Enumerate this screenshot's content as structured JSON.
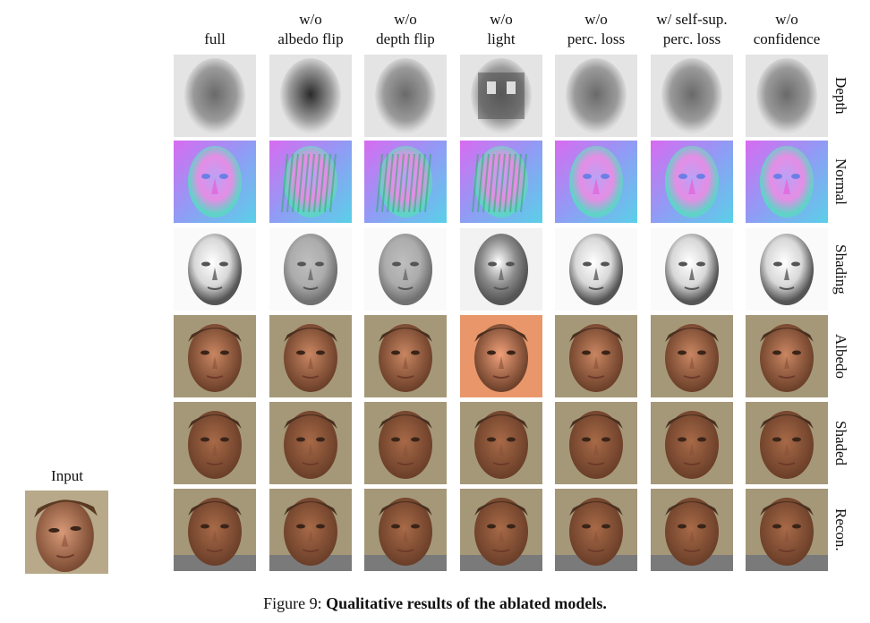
{
  "columns": [
    {
      "line1": "",
      "line2": "full"
    },
    {
      "line1": "w/o",
      "line2": "albedo flip"
    },
    {
      "line1": "w/o",
      "line2": "depth flip"
    },
    {
      "line1": "w/o",
      "line2": "light"
    },
    {
      "line1": "w/o",
      "line2": "perc. loss"
    },
    {
      "line1": "w/ self-sup.",
      "line2": "perc. loss"
    },
    {
      "line1": "w/o",
      "line2": "confidence"
    }
  ],
  "rows": [
    "Depth",
    "Normal",
    "Shading",
    "Albedo",
    "Shaded",
    "Recon."
  ],
  "input_label": "Input",
  "caption": {
    "prefix": "Figure 9:",
    "title": "Qualitative results of the ablated models."
  }
}
